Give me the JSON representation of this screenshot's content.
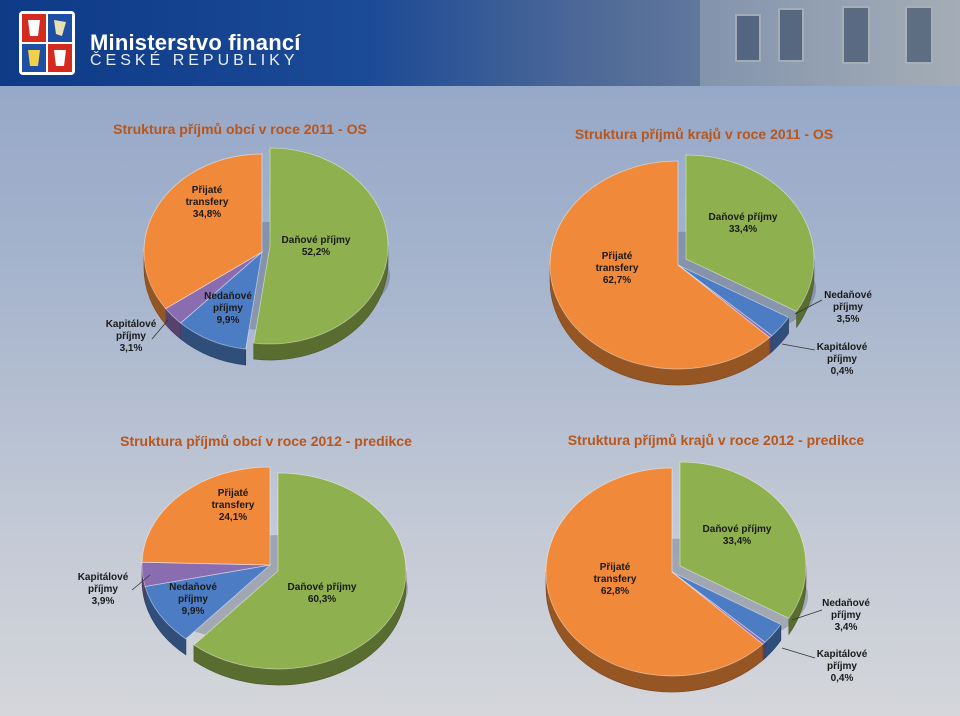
{
  "header": {
    "ministry_name": "Ministerstvo financí",
    "ministry_country": "ČESKÉ REPUBLIKY"
  },
  "colors": {
    "title": "#b8561c",
    "Daňové příjmy": "#8fb04e",
    "Nedaňové příjmy": "#4c7dc4",
    "Kapitálové příjmy": "#8a6cb0",
    "Přijaté transfery": "#f08a3a"
  },
  "chart_data": [
    {
      "type": "pie",
      "title": "Struktura příjmů obcí v roce 2011 - OS",
      "slices": [
        {
          "name": "Daňové příjmy",
          "value": 52.2,
          "label_lines": [
            "Daňové příjmy",
            "52,2%"
          ]
        },
        {
          "name": "Nedaňové příjmy",
          "value": 9.9,
          "label_lines": [
            "Nedaňové",
            "příjmy",
            "9,9%"
          ]
        },
        {
          "name": "Kapitálové příjmy",
          "value": 3.1,
          "label_lines": [
            "Kapitálové",
            "příjmy",
            "3,1%"
          ]
        },
        {
          "name": "Přijaté transfery",
          "value": 34.8,
          "label_lines": [
            "Přijaté",
            "transfery",
            "34,8%"
          ]
        }
      ]
    },
    {
      "type": "pie",
      "title": "Struktura příjmů krajů v roce 2011 - OS",
      "slices": [
        {
          "name": "Daňové příjmy",
          "value": 33.4,
          "label_lines": [
            "Daňové příjmy",
            "33,4%"
          ]
        },
        {
          "name": "Nedaňové příjmy",
          "value": 3.5,
          "label_lines": [
            "Nedaňové",
            "příjmy",
            "3,5%"
          ]
        },
        {
          "name": "Kapitálové příjmy",
          "value": 0.4,
          "label_lines": [
            "Kapitálové",
            "příjmy",
            "0,4%"
          ]
        },
        {
          "name": "Přijaté transfery",
          "value": 62.7,
          "label_lines": [
            "Přijaté",
            "transfery",
            "62,7%"
          ]
        }
      ]
    },
    {
      "type": "pie",
      "title": "Struktura příjmů obcí v roce 2012 - predikce",
      "slices": [
        {
          "name": "Daňové příjmy",
          "value": 60.3,
          "label_lines": [
            "Daňové příjmy",
            "60,3%"
          ]
        },
        {
          "name": "Nedaňové příjmy",
          "value": 9.9,
          "label_lines": [
            "Nedaňové",
            "příjmy",
            "9,9%"
          ]
        },
        {
          "name": "Kapitálové příjmy",
          "value": 3.9,
          "label_lines": [
            "Kapitálové",
            "příjmy",
            "3,9%"
          ]
        },
        {
          "name": "Přijaté transfery",
          "value": 24.1,
          "label_lines": [
            "Přijaté",
            "transfery",
            "24,1%"
          ]
        }
      ]
    },
    {
      "type": "pie",
      "title": "Struktura příjmů krajů v roce 2012 - predikce",
      "slices": [
        {
          "name": "Daňové příjmy",
          "value": 33.4,
          "label_lines": [
            "Daňové příjmy",
            "33,4%"
          ]
        },
        {
          "name": "Nedaňové příjmy",
          "value": 3.4,
          "label_lines": [
            "Nedaňové",
            "příjmy",
            "3,4%"
          ]
        },
        {
          "name": "Kapitálové příjmy",
          "value": 0.4,
          "label_lines": [
            "Kapitálové",
            "příjmy",
            "0,4%"
          ]
        },
        {
          "name": "Přijaté transfery",
          "value": 62.8,
          "label_lines": [
            "Přijaté",
            "transfery",
            "62,8%"
          ]
        }
      ]
    }
  ]
}
